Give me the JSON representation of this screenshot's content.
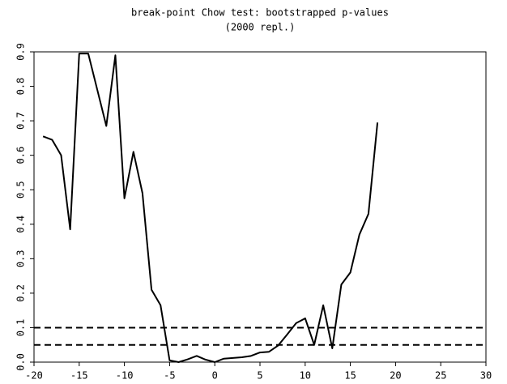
{
  "chart_data": {
    "type": "line",
    "title": "break-point Chow test: bootstrapped p-values",
    "subtitle": "(2000 repl.)",
    "x": [
      -19,
      -18,
      -17,
      -16,
      -15,
      -14,
      -13,
      -12,
      -11,
      -10,
      -9,
      -8,
      -7,
      -6,
      -5,
      -4,
      -3,
      -2,
      -1,
      0,
      1,
      2,
      3,
      4,
      5,
      6,
      7,
      8,
      9,
      10,
      11,
      12,
      13,
      14,
      15,
      16,
      17,
      18
    ],
    "series": [
      {
        "color": "#000000",
        "values": [
          0.655,
          0.645,
          0.6,
          0.385,
          0.895,
          0.895,
          0.79,
          0.685,
          0.89,
          0.475,
          0.61,
          0.49,
          0.21,
          0.165,
          0.005,
          0.0,
          0.008,
          0.018,
          0.007,
          0.0,
          0.01,
          0.012,
          0.014,
          0.018,
          0.028,
          0.03,
          0.048,
          0.08,
          0.113,
          0.127,
          0.05,
          0.165,
          0.04,
          0.225,
          0.26,
          0.37,
          0.43,
          0.695
        ]
      }
    ],
    "hlines": [
      0.1,
      0.05
    ],
    "xlim": [
      -20,
      30
    ],
    "xticks": [
      -20,
      -15,
      -10,
      -5,
      0,
      5,
      10,
      15,
      20,
      25,
      30
    ],
    "ylim": [
      0,
      0.9
    ],
    "yticks": [
      {
        "value": 0,
        "label": "0.0"
      },
      0.1,
      0.2,
      0.3,
      0.4,
      0.5,
      0.6,
      0.7,
      0.8,
      0.9
    ]
  }
}
